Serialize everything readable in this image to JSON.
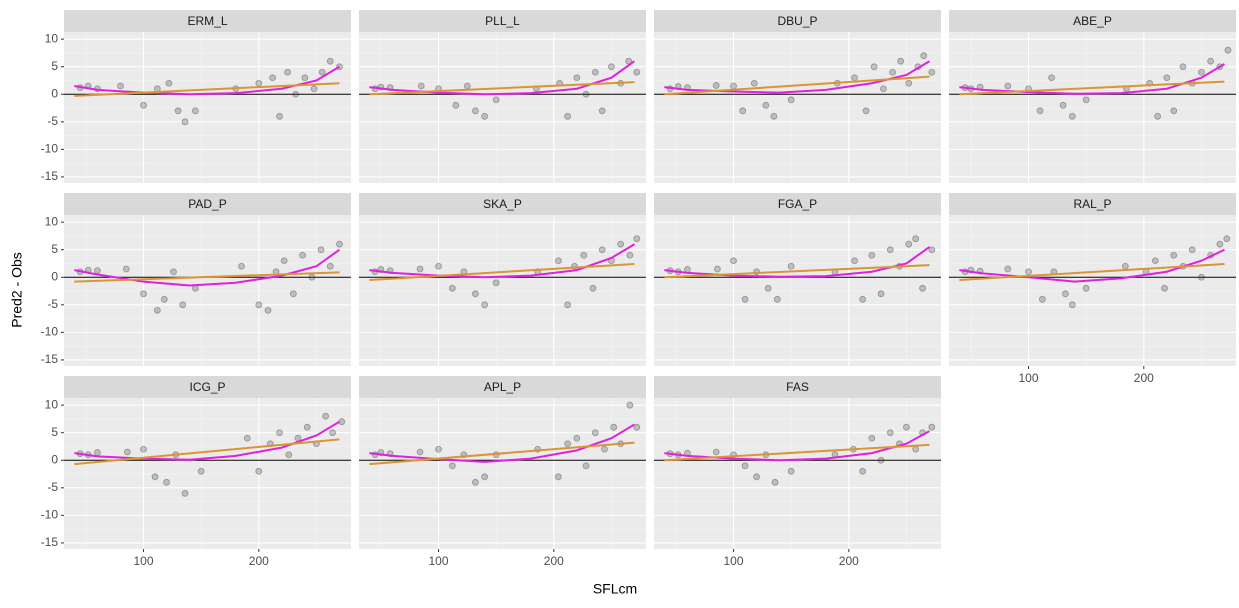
{
  "xlabel": "SFLcm",
  "ylabel": "Pred2 - Obs",
  "chart_data": [
    {
      "type": "scatter",
      "title": "ERM_L",
      "xlim": [
        31,
        280
      ],
      "ylim": [
        -16.1,
        11.3
      ],
      "xticks": [
        100,
        200
      ],
      "yticks": [
        -15,
        -10,
        -5,
        0,
        5,
        10
      ],
      "hline": 0,
      "points": {
        "color": "#333333",
        "x": [
          45,
          52,
          60,
          80,
          100,
          112,
          122,
          130,
          136,
          145,
          180,
          200,
          212,
          218,
          225,
          232,
          240,
          248,
          255,
          262,
          270
        ],
        "y": [
          1.2,
          1.5,
          1,
          1.5,
          -2,
          1,
          2,
          -3,
          -5,
          -3,
          1,
          2,
          3,
          -4,
          4,
          0,
          3,
          1,
          4,
          6,
          5
        ]
      },
      "lines": [
        {
          "color": "#e020e0",
          "x": [
            40,
            60,
            100,
            140,
            180,
            220,
            250,
            270
          ],
          "values": [
            1.5,
            0.8,
            0.3,
            0,
            0.2,
            1,
            2.5,
            5
          ]
        },
        {
          "color": "#d99536",
          "x": [
            40,
            270
          ],
          "values": [
            -0.3,
            2
          ]
        }
      ]
    },
    {
      "type": "scatter",
      "title": "PLL_L",
      "xlim": [
        31,
        280
      ],
      "ylim": [
        -16.1,
        11.3
      ],
      "xticks": [
        100,
        200
      ],
      "yticks": [
        -15,
        -10,
        -5,
        0,
        5,
        10
      ],
      "hline": 0,
      "points": {
        "color": "#333333",
        "x": [
          45,
          50,
          58,
          85,
          100,
          115,
          125,
          132,
          140,
          150,
          185,
          205,
          212,
          220,
          228,
          236,
          242,
          250,
          258,
          265,
          272
        ],
        "y": [
          1,
          1.3,
          1.2,
          1.5,
          1,
          -2,
          1.5,
          -3,
          -4,
          -1,
          1,
          2,
          -4,
          3,
          0,
          4,
          -3,
          5,
          2,
          6,
          4
        ]
      },
      "lines": [
        {
          "color": "#e020e0",
          "x": [
            40,
            60,
            100,
            140,
            180,
            220,
            250,
            270
          ],
          "values": [
            1.3,
            0.8,
            0.3,
            0,
            0.2,
            1,
            3,
            6
          ]
        },
        {
          "color": "#d99536",
          "x": [
            40,
            270
          ],
          "values": [
            0,
            2.2
          ]
        }
      ]
    },
    {
      "type": "scatter",
      "title": "DBU_P",
      "xlim": [
        31,
        280
      ],
      "ylim": [
        -16.1,
        11.3
      ],
      "xticks": [
        100,
        200
      ],
      "yticks": [
        -15,
        -10,
        -5,
        0,
        5,
        10
      ],
      "hline": 0,
      "points": {
        "color": "#333333",
        "x": [
          45,
          52,
          60,
          85,
          100,
          108,
          118,
          128,
          135,
          150,
          190,
          205,
          215,
          222,
          230,
          238,
          245,
          252,
          260,
          265,
          272
        ],
        "y": [
          1,
          1.4,
          1.2,
          1.6,
          1.5,
          -3,
          2,
          -2,
          -4,
          -1,
          2,
          3,
          -3,
          5,
          1,
          4,
          6,
          2,
          5,
          7,
          4
        ]
      },
      "lines": [
        {
          "color": "#e020e0",
          "x": [
            40,
            60,
            100,
            140,
            180,
            220,
            250,
            270
          ],
          "values": [
            1.3,
            0.8,
            0.5,
            0.3,
            0.8,
            2,
            3.5,
            6
          ]
        },
        {
          "color": "#d99536",
          "x": [
            40,
            270
          ],
          "values": [
            0,
            3.2
          ]
        }
      ]
    },
    {
      "type": "scatter",
      "title": "ABE_P",
      "xlim": [
        31,
        280
      ],
      "ylim": [
        -16.1,
        11.3
      ],
      "xticks": [
        100,
        200
      ],
      "yticks": [
        -15,
        -10,
        -5,
        0,
        5,
        10
      ],
      "hline": 0,
      "points": {
        "color": "#333333",
        "x": [
          45,
          50,
          58,
          82,
          100,
          110,
          120,
          130,
          138,
          150,
          185,
          205,
          212,
          220,
          226,
          234,
          242,
          250,
          258,
          266,
          273
        ],
        "y": [
          1.2,
          1,
          1.3,
          1.5,
          1,
          -3,
          3,
          -2,
          -4,
          -1,
          1,
          2,
          -4,
          3,
          -3,
          5,
          2,
          4,
          6,
          5,
          8
        ]
      },
      "lines": [
        {
          "color": "#e020e0",
          "x": [
            40,
            60,
            100,
            140,
            180,
            220,
            250,
            270
          ],
          "values": [
            1.3,
            0.8,
            0.4,
            0.1,
            0.2,
            1,
            3,
            5.5
          ]
        },
        {
          "color": "#d99536",
          "x": [
            40,
            270
          ],
          "values": [
            0,
            2.3
          ]
        }
      ]
    },
    {
      "type": "scatter",
      "title": "PAD_P",
      "xlim": [
        31,
        280
      ],
      "ylim": [
        -16.1,
        11.3
      ],
      "xticks": [
        100,
        200
      ],
      "yticks": [
        -15,
        -10,
        -5,
        0,
        5,
        10
      ],
      "hline": 0,
      "points": {
        "color": "#333333",
        "x": [
          45,
          52,
          60,
          85,
          100,
          112,
          118,
          126,
          134,
          145,
          185,
          200,
          208,
          215,
          222,
          230,
          238,
          246,
          254,
          262,
          270
        ],
        "y": [
          1,
          1.3,
          1.2,
          1.5,
          -3,
          -6,
          -4,
          1,
          -5,
          -2,
          2,
          -5,
          -6,
          1,
          3,
          -3,
          4,
          0,
          5,
          2,
          6
        ]
      },
      "lines": [
        {
          "color": "#e020e0",
          "x": [
            40,
            60,
            100,
            140,
            180,
            220,
            250,
            270
          ],
          "values": [
            1.3,
            0.5,
            -0.8,
            -1.5,
            -1,
            0.3,
            2,
            5
          ]
        },
        {
          "color": "#d99536",
          "x": [
            40,
            270
          ],
          "values": [
            -0.8,
            0.9
          ]
        }
      ]
    },
    {
      "type": "scatter",
      "title": "SKA_P",
      "xlim": [
        31,
        280
      ],
      "ylim": [
        -16.1,
        11.3
      ],
      "xticks": [
        100,
        200
      ],
      "yticks": [
        -15,
        -10,
        -5,
        0,
        5,
        10
      ],
      "hline": 0,
      "points": {
        "color": "#333333",
        "x": [
          45,
          50,
          58,
          84,
          100,
          112,
          122,
          132,
          140,
          150,
          186,
          204,
          212,
          218,
          226,
          234,
          242,
          250,
          258,
          266,
          272
        ],
        "y": [
          1,
          1.4,
          1.2,
          1.5,
          2,
          -2,
          1,
          -3,
          -5,
          -1,
          1,
          3,
          -5,
          2,
          4,
          -2,
          5,
          3,
          6,
          4,
          7
        ]
      },
      "lines": [
        {
          "color": "#e020e0",
          "x": [
            40,
            60,
            100,
            140,
            180,
            220,
            250,
            270
          ],
          "values": [
            1.3,
            0.8,
            0.3,
            0,
            0.3,
            1.3,
            3.5,
            6
          ]
        },
        {
          "color": "#d99536",
          "x": [
            40,
            270
          ],
          "values": [
            -0.5,
            2.4
          ]
        }
      ]
    },
    {
      "type": "scatter",
      "title": "FGA_P",
      "xlim": [
        31,
        280
      ],
      "ylim": [
        -16.1,
        11.3
      ],
      "xticks": [
        100,
        200
      ],
      "yticks": [
        -15,
        -10,
        -5,
        0,
        5,
        10
      ],
      "hline": 0,
      "points": {
        "color": "#333333",
        "x": [
          45,
          52,
          60,
          86,
          100,
          110,
          120,
          130,
          138,
          150,
          188,
          205,
          212,
          220,
          228,
          236,
          244,
          252,
          258,
          264,
          272
        ],
        "y": [
          1.2,
          1,
          1.4,
          1.5,
          3,
          -4,
          1,
          -2,
          -4,
          2,
          1,
          3,
          -4,
          4,
          -3,
          5,
          2,
          6,
          7,
          -2,
          5
        ]
      },
      "lines": [
        {
          "color": "#e020e0",
          "x": [
            40,
            60,
            100,
            140,
            180,
            220,
            250,
            270
          ],
          "values": [
            1.3,
            0.8,
            0.3,
            0.1,
            0.2,
            1,
            2.5,
            5.5
          ]
        },
        {
          "color": "#d99536",
          "x": [
            40,
            270
          ],
          "values": [
            0,
            2.2
          ]
        }
      ]
    },
    {
      "type": "scatter",
      "title": "RAL_P",
      "xlim": [
        31,
        280
      ],
      "ylim": [
        -16.1,
        11.3
      ],
      "xticks": [
        100,
        200
      ],
      "yticks": [
        -15,
        -10,
        -5,
        0,
        5,
        10
      ],
      "hline": 0,
      "points": {
        "color": "#333333",
        "x": [
          45,
          50,
          58,
          82,
          100,
          112,
          122,
          132,
          138,
          150,
          184,
          202,
          210,
          218,
          226,
          234,
          242,
          250,
          258,
          266,
          272
        ],
        "y": [
          1,
          1.3,
          1.1,
          1.5,
          1,
          -4,
          1,
          -3,
          -5,
          -2,
          2,
          1,
          3,
          -2,
          4,
          2,
          5,
          0,
          4,
          6,
          7
        ]
      },
      "lines": [
        {
          "color": "#e020e0",
          "x": [
            40,
            60,
            100,
            140,
            180,
            220,
            250,
            270
          ],
          "values": [
            1.3,
            0.7,
            0,
            -0.8,
            -0.2,
            1,
            3,
            5
          ]
        },
        {
          "color": "#d99536",
          "x": [
            40,
            270
          ],
          "values": [
            -0.5,
            2.4
          ]
        }
      ]
    },
    {
      "type": "scatter",
      "title": "ICG_P",
      "xlim": [
        31,
        280
      ],
      "ylim": [
        -16.1,
        11.3
      ],
      "xticks": [
        100,
        200
      ],
      "yticks": [
        -15,
        -10,
        -5,
        0,
        5,
        10
      ],
      "hline": 0,
      "points": {
        "color": "#333333",
        "x": [
          45,
          52,
          60,
          86,
          100,
          110,
          120,
          128,
          136,
          150,
          190,
          200,
          210,
          218,
          226,
          234,
          242,
          250,
          258,
          264,
          272
        ],
        "y": [
          1.2,
          1,
          1.4,
          1.5,
          2,
          -3,
          -4,
          1,
          -6,
          -2,
          4,
          -2,
          3,
          5,
          1,
          4,
          6,
          3,
          8,
          5,
          7
        ]
      },
      "lines": [
        {
          "color": "#e020e0",
          "x": [
            40,
            60,
            100,
            140,
            180,
            220,
            250,
            270
          ],
          "values": [
            1.3,
            0.7,
            0.3,
            0.1,
            0.8,
            2.3,
            4.5,
            7
          ]
        },
        {
          "color": "#d99536",
          "x": [
            40,
            270
          ],
          "values": [
            -0.7,
            3.8
          ]
        }
      ]
    },
    {
      "type": "scatter",
      "title": "APL_P",
      "xlim": [
        31,
        280
      ],
      "ylim": [
        -16.1,
        11.3
      ],
      "xticks": [
        100,
        200
      ],
      "yticks": [
        -15,
        -10,
        -5,
        0,
        5,
        10
      ],
      "hline": 0,
      "points": {
        "color": "#333333",
        "x": [
          45,
          50,
          58,
          84,
          100,
          112,
          122,
          132,
          140,
          150,
          186,
          204,
          212,
          220,
          228,
          236,
          244,
          252,
          258,
          266,
          272
        ],
        "y": [
          1,
          1.4,
          1.2,
          1.5,
          2,
          -1,
          1,
          -4,
          -3,
          1,
          2,
          -3,
          3,
          4,
          -1,
          5,
          2,
          6,
          3,
          10,
          6
        ]
      },
      "lines": [
        {
          "color": "#e020e0",
          "x": [
            40,
            60,
            100,
            140,
            180,
            220,
            250,
            270
          ],
          "values": [
            1.3,
            0.8,
            0.2,
            -0.3,
            0.3,
            1.8,
            4,
            6.5
          ]
        },
        {
          "color": "#d99536",
          "x": [
            40,
            270
          ],
          "values": [
            -0.7,
            3.2
          ]
        }
      ]
    },
    {
      "type": "scatter",
      "title": "FAS",
      "xlim": [
        31,
        280
      ],
      "ylim": [
        -16.1,
        11.3
      ],
      "xticks": [
        100,
        200
      ],
      "yticks": [
        -15,
        -10,
        -5,
        0,
        5,
        10
      ],
      "hline": 0,
      "points": {
        "color": "#333333",
        "x": [
          45,
          52,
          60,
          85,
          100,
          110,
          120,
          128,
          136,
          150,
          188,
          204,
          212,
          220,
          228,
          236,
          244,
          250,
          258,
          264,
          272
        ],
        "y": [
          1.2,
          1,
          1.3,
          1.5,
          1,
          -1,
          -3,
          1,
          -4,
          -2,
          1,
          2,
          -2,
          4,
          0,
          5,
          3,
          6,
          2,
          5,
          6
        ]
      },
      "lines": [
        {
          "color": "#e020e0",
          "x": [
            40,
            60,
            100,
            140,
            180,
            220,
            250,
            270
          ],
          "values": [
            1.3,
            0.8,
            0.3,
            0,
            0.3,
            1.3,
            3,
            5.3
          ]
        },
        {
          "color": "#d99536",
          "x": [
            40,
            270
          ],
          "values": [
            0,
            2.8
          ]
        }
      ]
    }
  ]
}
